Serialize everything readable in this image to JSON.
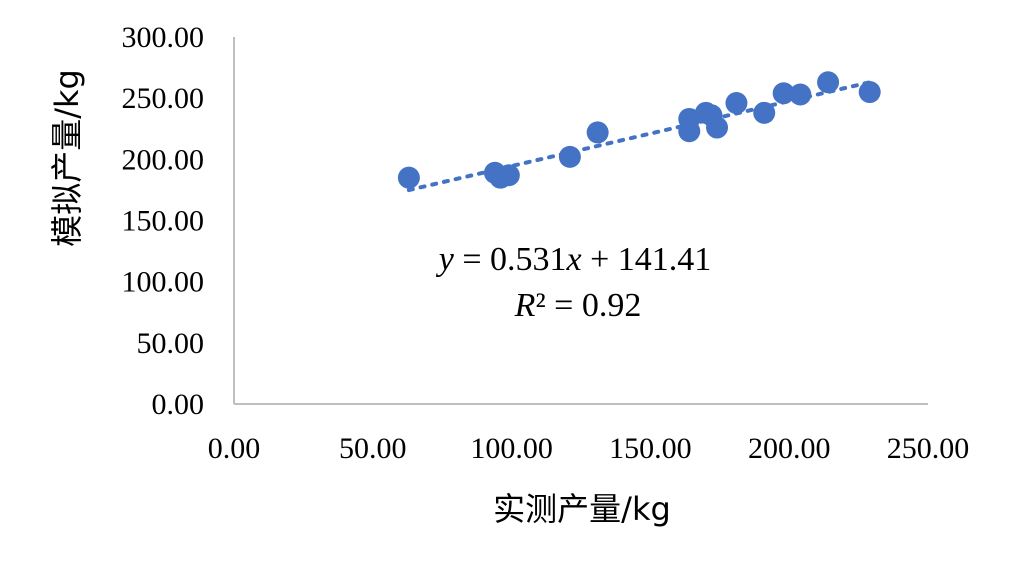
{
  "chart_data": {
    "type": "scatter",
    "title": "",
    "xlabel": "实测产量/kg",
    "ylabel": "模拟产量/kg",
    "xlim": [
      0,
      250
    ],
    "ylim": [
      0,
      300
    ],
    "x_ticks": [
      "0.00",
      "50.00",
      "100.00",
      "150.00",
      "200.00",
      "250.00"
    ],
    "y_ticks": [
      "0.00",
      "50.00",
      "100.00",
      "150.00",
      "200.00",
      "250.00",
      "300.00"
    ],
    "grid": false,
    "legend": "none",
    "marker_color": "#4472C4",
    "points": [
      {
        "x": 63,
        "y": 185
      },
      {
        "x": 94,
        "y": 189
      },
      {
        "x": 96,
        "y": 185
      },
      {
        "x": 99,
        "y": 187
      },
      {
        "x": 121,
        "y": 202
      },
      {
        "x": 131,
        "y": 222
      },
      {
        "x": 164,
        "y": 233
      },
      {
        "x": 164,
        "y": 223
      },
      {
        "x": 170,
        "y": 238
      },
      {
        "x": 172,
        "y": 236
      },
      {
        "x": 174,
        "y": 226
      },
      {
        "x": 181,
        "y": 246
      },
      {
        "x": 191,
        "y": 238
      },
      {
        "x": 198,
        "y": 254
      },
      {
        "x": 204,
        "y": 253
      },
      {
        "x": 214,
        "y": 263
      },
      {
        "x": 229,
        "y": 255
      }
    ],
    "trendline": {
      "type": "linear",
      "slope": 0.531,
      "intercept": 141.41,
      "x_range": [
        63,
        229
      ],
      "style": "dotted",
      "equation_parts": {
        "y": "y",
        "eq": " = 0.531",
        "x": "x",
        "rest": " + 141.41"
      },
      "r2_parts": {
        "r": "R",
        "rest": "² = 0.92"
      }
    }
  }
}
